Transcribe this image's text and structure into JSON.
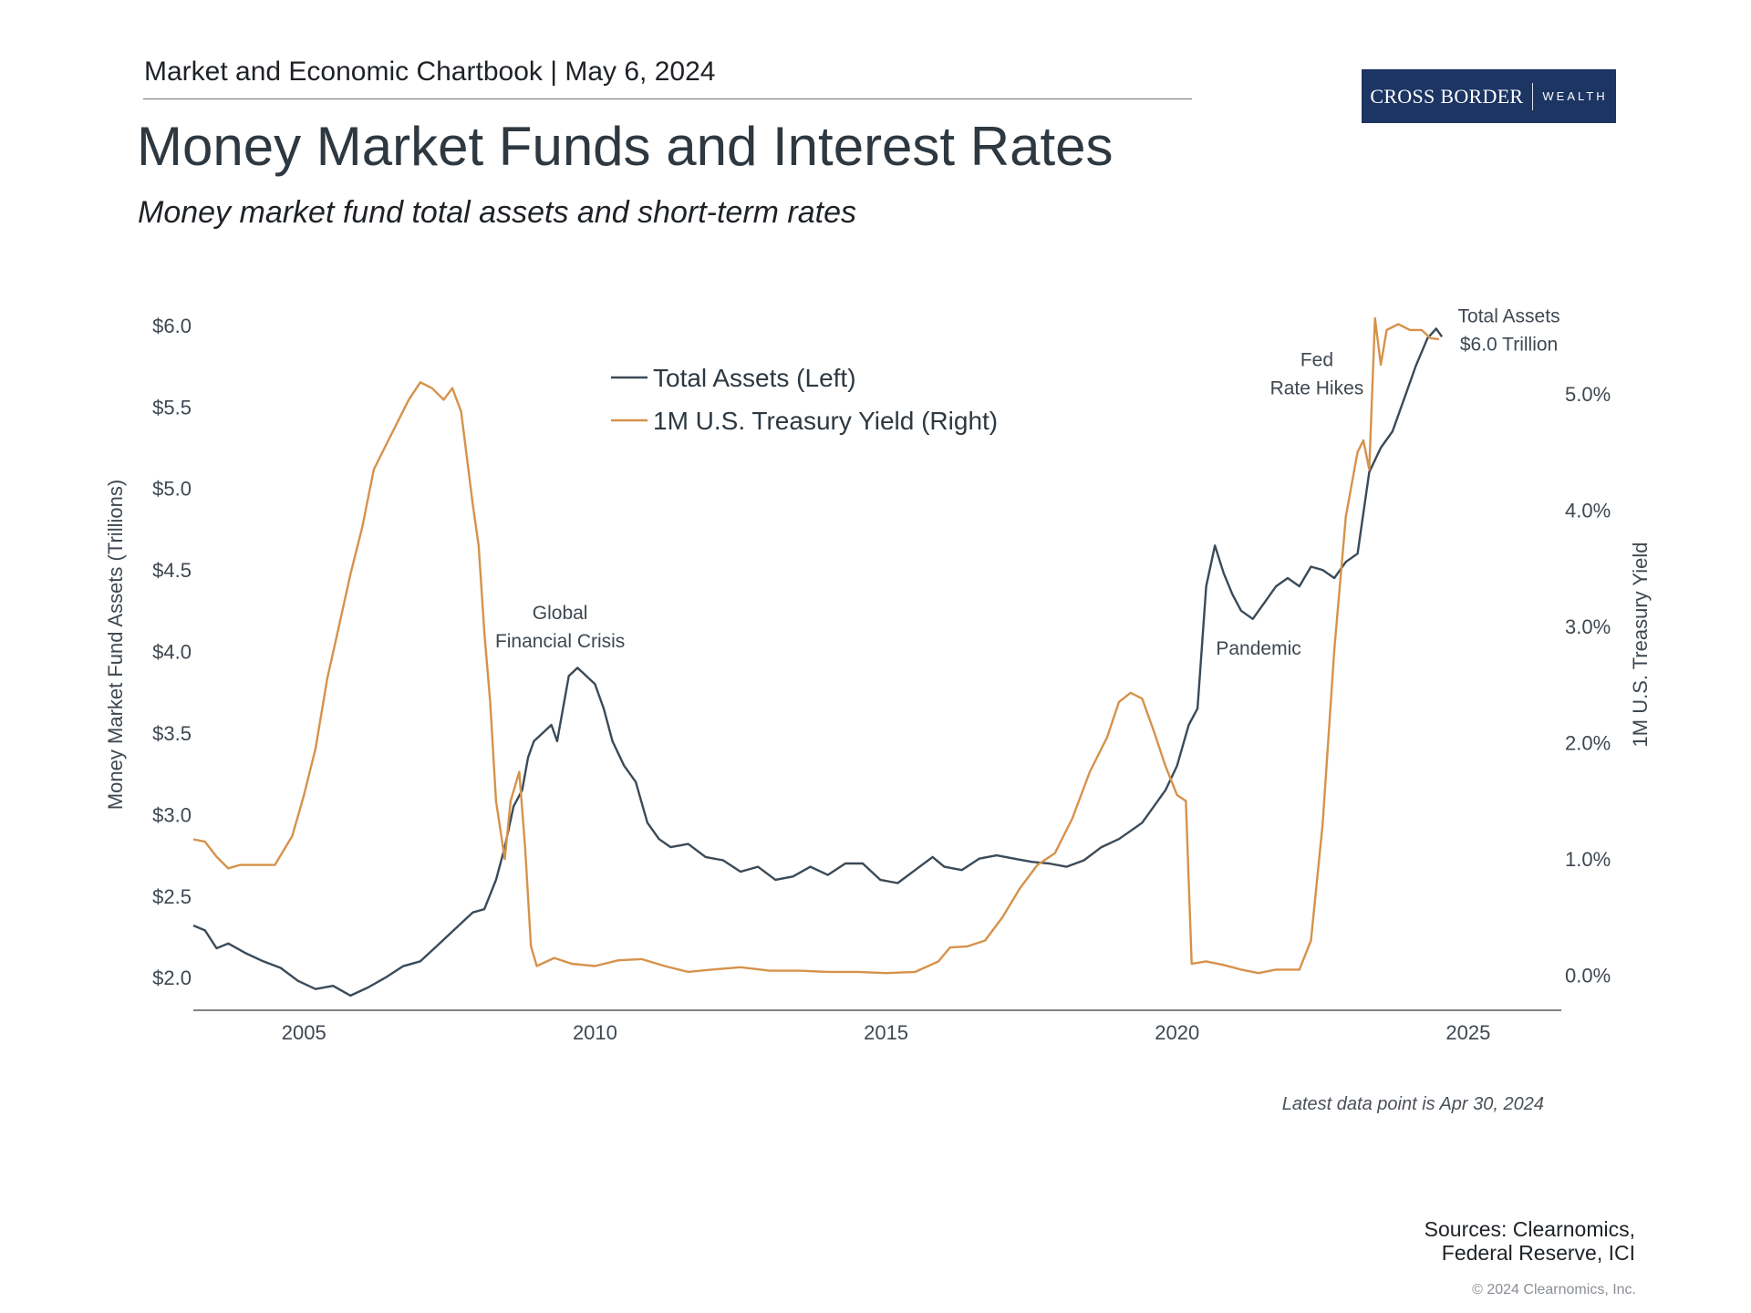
{
  "header": {
    "chartbook": "Market and Economic Chartbook | May 6, 2024",
    "logo_main": "CROSS BORDER",
    "logo_sub": "WEALTH"
  },
  "title": "Money Market Funds and Interest Rates",
  "subtitle": "Money market fund total assets and short-term rates",
  "colors": {
    "assets": "#3b4a57",
    "yield": "#d6924b",
    "axis": "#555a5e",
    "text": "#3f4750"
  },
  "chart_data": {
    "type": "line",
    "x_axis": {
      "ticks": [
        2005,
        2010,
        2015,
        2020,
        2025
      ],
      "tick_labels": [
        "2005",
        "2010",
        "2015",
        "2020",
        "2025"
      ],
      "range": [
        2003.1,
        2026.6
      ]
    },
    "left_axis": {
      "label": "Money Market Fund Assets (Trillions)",
      "range": [
        1.8,
        6.15
      ],
      "ticks": [
        2.0,
        2.5,
        3.0,
        3.5,
        4.0,
        4.5,
        5.0,
        5.5,
        6.0
      ],
      "tick_labels": [
        "$2.0",
        "$2.5",
        "$3.0",
        "$3.5",
        "$4.0",
        "$4.5",
        "$5.0",
        "$5.5",
        "$6.0"
      ]
    },
    "right_axis": {
      "label": "1M U.S. Treasury Yield",
      "range": [
        -0.3,
        5.8
      ],
      "ticks": [
        0,
        1,
        2,
        3,
        4,
        5
      ],
      "tick_labels": [
        "0.0%",
        "1.0%",
        "2.0%",
        "3.0%",
        "4.0%",
        "5.0%"
      ]
    },
    "legend": {
      "position": "top-center",
      "items": [
        "Total Assets (Left)",
        "1M U.S. Treasury Yield (Right)"
      ]
    },
    "grid": false,
    "series": [
      {
        "name": "Total Assets (Left)",
        "axis": "left",
        "points": [
          [
            2003.1,
            2.32
          ],
          [
            2003.3,
            2.29
          ],
          [
            2003.5,
            2.18
          ],
          [
            2003.7,
            2.21
          ],
          [
            2004.0,
            2.15
          ],
          [
            2004.3,
            2.1
          ],
          [
            2004.6,
            2.06
          ],
          [
            2004.9,
            1.98
          ],
          [
            2005.2,
            1.93
          ],
          [
            2005.5,
            1.95
          ],
          [
            2005.8,
            1.89
          ],
          [
            2006.1,
            1.94
          ],
          [
            2006.4,
            2.0
          ],
          [
            2006.7,
            2.07
          ],
          [
            2007.0,
            2.1
          ],
          [
            2007.3,
            2.2
          ],
          [
            2007.6,
            2.3
          ],
          [
            2007.9,
            2.4
          ],
          [
            2008.1,
            2.42
          ],
          [
            2008.3,
            2.6
          ],
          [
            2008.45,
            2.8
          ],
          [
            2008.6,
            3.05
          ],
          [
            2008.75,
            3.15
          ],
          [
            2008.85,
            3.35
          ],
          [
            2008.95,
            3.45
          ],
          [
            2009.1,
            3.5
          ],
          [
            2009.25,
            3.55
          ],
          [
            2009.35,
            3.45
          ],
          [
            2009.55,
            3.85
          ],
          [
            2009.7,
            3.9
          ],
          [
            2009.85,
            3.85
          ],
          [
            2010.0,
            3.8
          ],
          [
            2010.15,
            3.65
          ],
          [
            2010.3,
            3.45
          ],
          [
            2010.5,
            3.3
          ],
          [
            2010.7,
            3.2
          ],
          [
            2010.9,
            2.95
          ],
          [
            2011.1,
            2.85
          ],
          [
            2011.3,
            2.8
          ],
          [
            2011.6,
            2.82
          ],
          [
            2011.9,
            2.74
          ],
          [
            2012.2,
            2.72
          ],
          [
            2012.5,
            2.65
          ],
          [
            2012.8,
            2.68
          ],
          [
            2013.1,
            2.6
          ],
          [
            2013.4,
            2.62
          ],
          [
            2013.7,
            2.68
          ],
          [
            2014.0,
            2.63
          ],
          [
            2014.3,
            2.7
          ],
          [
            2014.6,
            2.7
          ],
          [
            2014.9,
            2.6
          ],
          [
            2015.2,
            2.58
          ],
          [
            2015.5,
            2.66
          ],
          [
            2015.8,
            2.74
          ],
          [
            2016.0,
            2.68
          ],
          [
            2016.3,
            2.66
          ],
          [
            2016.6,
            2.73
          ],
          [
            2016.9,
            2.75
          ],
          [
            2017.2,
            2.73
          ],
          [
            2017.5,
            2.71
          ],
          [
            2017.8,
            2.7
          ],
          [
            2018.1,
            2.68
          ],
          [
            2018.4,
            2.72
          ],
          [
            2018.7,
            2.8
          ],
          [
            2019.0,
            2.85
          ],
          [
            2019.2,
            2.9
          ],
          [
            2019.4,
            2.95
          ],
          [
            2019.6,
            3.05
          ],
          [
            2019.8,
            3.15
          ],
          [
            2020.0,
            3.3
          ],
          [
            2020.2,
            3.55
          ],
          [
            2020.35,
            3.65
          ],
          [
            2020.5,
            4.4
          ],
          [
            2020.65,
            4.65
          ],
          [
            2020.8,
            4.48
          ],
          [
            2020.95,
            4.35
          ],
          [
            2021.1,
            4.25
          ],
          [
            2021.3,
            4.2
          ],
          [
            2021.5,
            4.3
          ],
          [
            2021.7,
            4.4
          ],
          [
            2021.9,
            4.45
          ],
          [
            2022.1,
            4.4
          ],
          [
            2022.3,
            4.52
          ],
          [
            2022.5,
            4.5
          ],
          [
            2022.7,
            4.45
          ],
          [
            2022.9,
            4.55
          ],
          [
            2023.1,
            4.6
          ],
          [
            2023.3,
            5.1
          ],
          [
            2023.5,
            5.25
          ],
          [
            2023.7,
            5.35
          ],
          [
            2023.9,
            5.55
          ],
          [
            2024.1,
            5.75
          ],
          [
            2024.3,
            5.92
          ],
          [
            2024.45,
            5.98
          ],
          [
            2024.55,
            5.93
          ]
        ]
      },
      {
        "name": "1M U.S. Treasury Yield (Right)",
        "axis": "right",
        "points": [
          [
            2003.1,
            1.17
          ],
          [
            2003.3,
            1.15
          ],
          [
            2003.5,
            1.02
          ],
          [
            2003.7,
            0.92
          ],
          [
            2003.9,
            0.95
          ],
          [
            2004.2,
            0.95
          ],
          [
            2004.5,
            0.95
          ],
          [
            2004.8,
            1.2
          ],
          [
            2005.0,
            1.55
          ],
          [
            2005.2,
            1.95
          ],
          [
            2005.4,
            2.55
          ],
          [
            2005.6,
            3.0
          ],
          [
            2005.8,
            3.45
          ],
          [
            2006.0,
            3.85
          ],
          [
            2006.2,
            4.35
          ],
          [
            2006.4,
            4.55
          ],
          [
            2006.6,
            4.75
          ],
          [
            2006.8,
            4.95
          ],
          [
            2007.0,
            5.1
          ],
          [
            2007.2,
            5.05
          ],
          [
            2007.4,
            4.95
          ],
          [
            2007.55,
            5.05
          ],
          [
            2007.7,
            4.85
          ],
          [
            2007.8,
            4.45
          ],
          [
            2007.9,
            4.05
          ],
          [
            2008.0,
            3.7
          ],
          [
            2008.1,
            2.95
          ],
          [
            2008.2,
            2.35
          ],
          [
            2008.3,
            1.5
          ],
          [
            2008.45,
            1.0
          ],
          [
            2008.55,
            1.5
          ],
          [
            2008.7,
            1.75
          ],
          [
            2008.8,
            1.1
          ],
          [
            2008.9,
            0.25
          ],
          [
            2009.0,
            0.08
          ],
          [
            2009.3,
            0.15
          ],
          [
            2009.6,
            0.1
          ],
          [
            2010.0,
            0.08
          ],
          [
            2010.4,
            0.13
          ],
          [
            2010.8,
            0.14
          ],
          [
            2011.2,
            0.08
          ],
          [
            2011.6,
            0.03
          ],
          [
            2012.0,
            0.05
          ],
          [
            2012.5,
            0.07
          ],
          [
            2013.0,
            0.04
          ],
          [
            2013.5,
            0.04
          ],
          [
            2014.0,
            0.03
          ],
          [
            2014.5,
            0.03
          ],
          [
            2015.0,
            0.02
          ],
          [
            2015.5,
            0.03
          ],
          [
            2015.9,
            0.12
          ],
          [
            2016.1,
            0.24
          ],
          [
            2016.4,
            0.25
          ],
          [
            2016.7,
            0.3
          ],
          [
            2017.0,
            0.5
          ],
          [
            2017.3,
            0.75
          ],
          [
            2017.6,
            0.95
          ],
          [
            2017.9,
            1.05
          ],
          [
            2018.2,
            1.35
          ],
          [
            2018.5,
            1.75
          ],
          [
            2018.8,
            2.05
          ],
          [
            2019.0,
            2.35
          ],
          [
            2019.2,
            2.43
          ],
          [
            2019.4,
            2.38
          ],
          [
            2019.6,
            2.1
          ],
          [
            2019.8,
            1.8
          ],
          [
            2020.0,
            1.55
          ],
          [
            2020.15,
            1.5
          ],
          [
            2020.25,
            0.1
          ],
          [
            2020.5,
            0.12
          ],
          [
            2020.8,
            0.09
          ],
          [
            2021.1,
            0.05
          ],
          [
            2021.4,
            0.02
          ],
          [
            2021.7,
            0.05
          ],
          [
            2021.9,
            0.05
          ],
          [
            2022.1,
            0.05
          ],
          [
            2022.3,
            0.3
          ],
          [
            2022.5,
            1.3
          ],
          [
            2022.7,
            2.8
          ],
          [
            2022.9,
            3.95
          ],
          [
            2023.1,
            4.5
          ],
          [
            2023.2,
            4.6
          ],
          [
            2023.3,
            4.35
          ],
          [
            2023.4,
            5.65
          ],
          [
            2023.5,
            5.25
          ],
          [
            2023.6,
            5.55
          ],
          [
            2023.8,
            5.6
          ],
          [
            2024.0,
            5.55
          ],
          [
            2024.2,
            5.55
          ],
          [
            2024.35,
            5.48
          ],
          [
            2024.5,
            5.47
          ]
        ]
      }
    ],
    "annotations": [
      {
        "id": "gfc",
        "lines": [
          "Global",
          "Financial Crisis"
        ],
        "x": 2009.4,
        "y": 4.2,
        "axis": "left"
      },
      {
        "id": "pandemic",
        "lines": [
          "Pandemic"
        ],
        "x": 2021.4,
        "y": 3.98,
        "axis": "left"
      },
      {
        "id": "fed",
        "lines": [
          "Fed",
          "Rate Hikes"
        ],
        "x": 2022.4,
        "y": 5.75,
        "axis": "left"
      },
      {
        "id": "total",
        "lines": [
          "Total Assets",
          "$6.0 Trillion"
        ],
        "x": 2025.7,
        "y": 6.02,
        "axis": "left"
      }
    ]
  },
  "latest_note": "Latest data point is Apr 30, 2024",
  "sources": [
    "Sources: Clearnomics,",
    "Federal Reserve, ICI"
  ],
  "copyright": "© 2024 Clearnomics, Inc."
}
